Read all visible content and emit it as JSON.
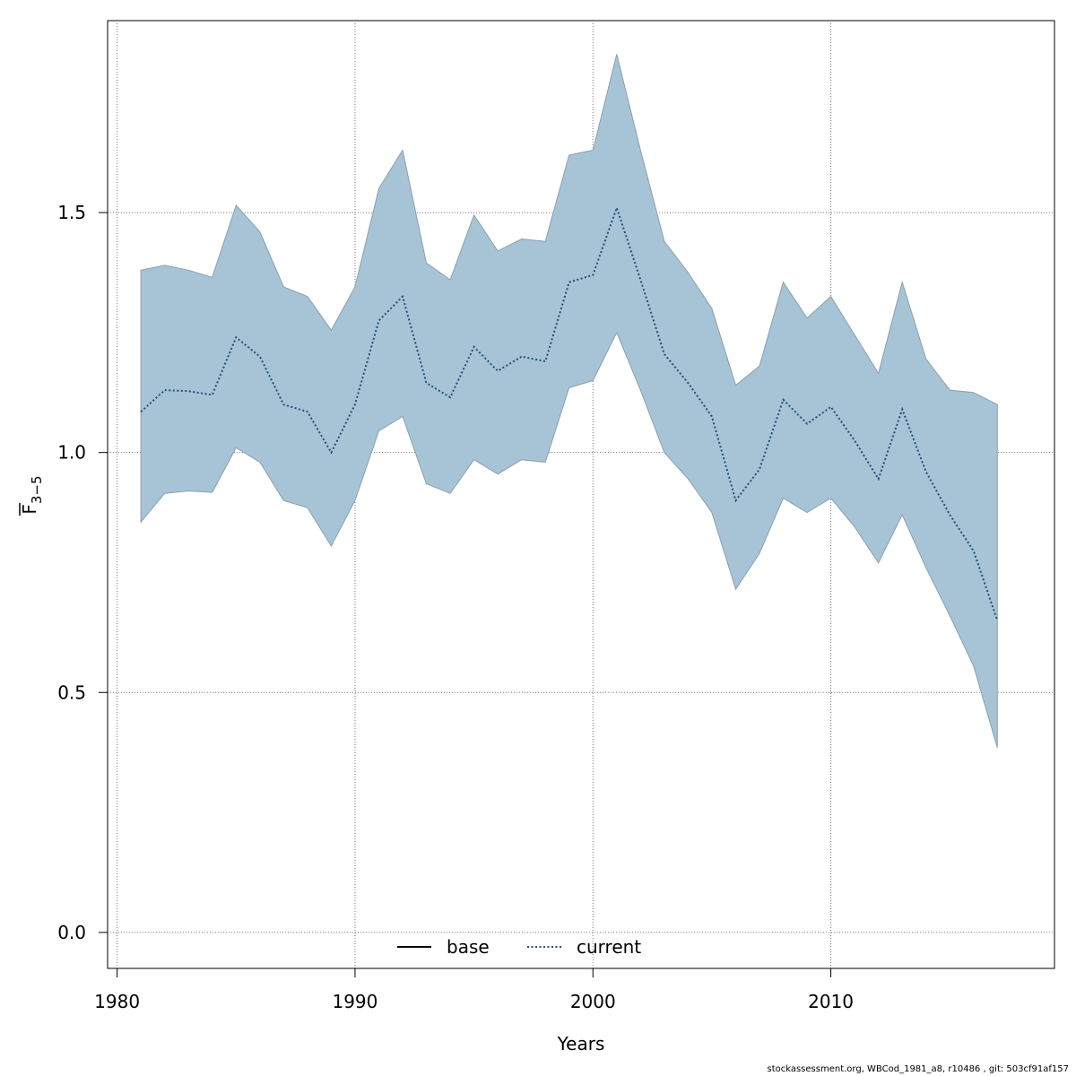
{
  "chart_data": {
    "type": "area",
    "xlabel": "Years",
    "ylabel_main": "F",
    "ylabel_sub": "3−5",
    "xlim": [
      1979.6,
      2019.4
    ],
    "ylim": [
      -0.075,
      1.9
    ],
    "x_ticks": [
      1980,
      1990,
      2000,
      2010
    ],
    "y_ticks": [
      0.0,
      0.5,
      1.0,
      1.5
    ],
    "y_tick_labels": [
      "0.0",
      "0.5",
      "1.0",
      "1.5"
    ],
    "grid": true,
    "legend_placement": "bottom",
    "legend": [
      {
        "label": "base",
        "style": "solid",
        "color": "#000000"
      },
      {
        "label": "current",
        "style": "dotted",
        "color": "#1f4e79"
      }
    ],
    "band_color": "#a6c4d6",
    "band_edge_color": "#8aa0ac",
    "x": [
      1981,
      1982,
      1983,
      1984,
      1985,
      1986,
      1987,
      1988,
      1989,
      1990,
      1991,
      1992,
      1993,
      1994,
      1995,
      1996,
      1997,
      1998,
      1999,
      2000,
      2001,
      2002,
      2003,
      2004,
      2005,
      2006,
      2007,
      2008,
      2009,
      2010,
      2011,
      2012,
      2013,
      2014,
      2015,
      2016,
      2017
    ],
    "series": [
      {
        "name": "current",
        "values": [
          1.085,
          1.13,
          1.128,
          1.12,
          1.24,
          1.2,
          1.1,
          1.085,
          1.0,
          1.1,
          1.275,
          1.325,
          1.145,
          1.115,
          1.22,
          1.17,
          1.2,
          1.19,
          1.355,
          1.37,
          1.51,
          1.36,
          1.205,
          1.145,
          1.075,
          0.9,
          0.965,
          1.11,
          1.06,
          1.095,
          1.025,
          0.945,
          1.09,
          0.96,
          0.87,
          0.795,
          0.65
        ]
      },
      {
        "name": "base",
        "values": [
          1.085,
          1.13,
          1.128,
          1.12,
          1.24,
          1.2,
          1.1,
          1.085,
          1.0,
          1.1,
          1.275,
          1.325,
          1.145,
          1.115,
          1.22,
          1.17,
          1.2,
          1.19,
          1.355,
          1.37,
          1.51,
          1.36,
          1.205,
          1.145,
          1.075,
          0.9,
          0.965,
          1.11,
          1.06,
          1.095,
          1.025,
          0.945,
          1.09,
          0.96,
          0.87,
          0.795,
          0.65
        ]
      }
    ],
    "upper": [
      1.38,
      1.39,
      1.38,
      1.365,
      1.515,
      1.46,
      1.345,
      1.325,
      1.255,
      1.345,
      1.55,
      1.63,
      1.395,
      1.36,
      1.495,
      1.42,
      1.445,
      1.44,
      1.62,
      1.63,
      1.83,
      1.63,
      1.44,
      1.375,
      1.3,
      1.14,
      1.18,
      1.355,
      1.28,
      1.325,
      1.245,
      1.165,
      1.355,
      1.195,
      1.13,
      1.125,
      1.1
    ],
    "lower": [
      0.855,
      0.915,
      0.92,
      0.917,
      1.01,
      0.98,
      0.9,
      0.885,
      0.805,
      0.9,
      1.045,
      1.075,
      0.935,
      0.915,
      0.985,
      0.955,
      0.985,
      0.98,
      1.135,
      1.15,
      1.25,
      1.13,
      1.0,
      0.945,
      0.875,
      0.715,
      0.79,
      0.905,
      0.875,
      0.905,
      0.845,
      0.77,
      0.87,
      0.76,
      0.66,
      0.555,
      0.385
    ]
  },
  "footer": {
    "text": "stockassessment.org, WBCod_1981_a8, r10486 , git: 503cf91af157"
  }
}
